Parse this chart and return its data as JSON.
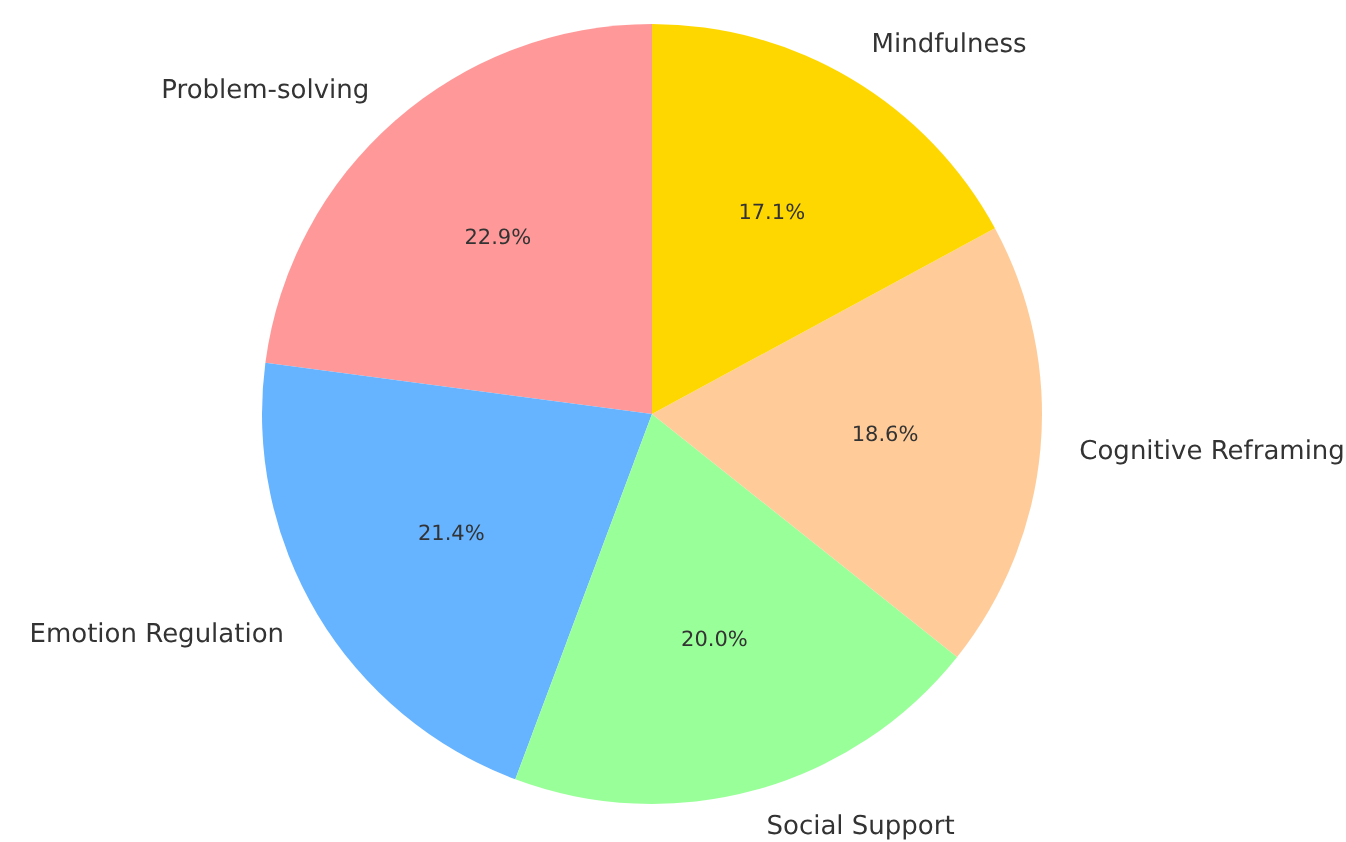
{
  "chart_data": {
    "type": "pie",
    "categories": [
      "Problem-solving",
      "Emotion Regulation",
      "Social Support",
      "Cognitive Reframing",
      "Mindfulness"
    ],
    "values": [
      22.9,
      21.4,
      20.0,
      18.6,
      17.1
    ],
    "colors": [
      "#ff9999",
      "#66b3ff",
      "#99ff99",
      "#ffcc99",
      "#ffd700"
    ],
    "value_labels": [
      "22.9%",
      "21.4%",
      "20.0%",
      "18.6%",
      "17.1%"
    ]
  }
}
